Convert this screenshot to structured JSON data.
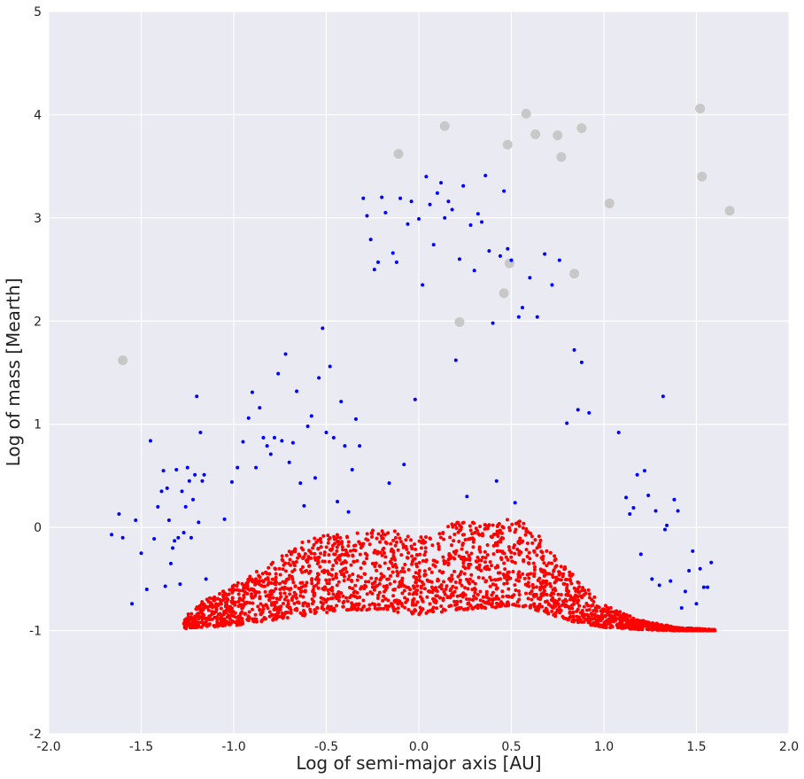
{
  "chart_data": {
    "type": "scatter",
    "title": "",
    "xlabel": "Log of semi-major axis [AU]",
    "ylabel": "Log of mass [Mearth]",
    "xlim": [
      -2.0,
      2.0
    ],
    "ylim": [
      -2,
      5
    ],
    "xticks": [
      "-2.0",
      "-1.5",
      "-1.0",
      "-0.5",
      "0.0",
      "0.5",
      "1.0",
      "1.5",
      "2.0"
    ],
    "yticks": [
      "-2",
      "-1",
      "0",
      "1",
      "2",
      "3",
      "4",
      "5"
    ],
    "grid": true,
    "legend": "none",
    "background_color": "#eaeaf2",
    "series": [
      {
        "color": "#c8c8c8",
        "marker": "large-circle",
        "x": [
          -1.6,
          -0.11,
          0.14,
          0.48,
          0.58,
          0.63,
          0.75,
          0.77,
          0.88,
          0.22,
          0.46,
          0.49,
          0.84,
          1.03,
          1.52,
          1.53,
          1.68
        ],
        "y": [
          1.62,
          3.62,
          3.89,
          3.71,
          4.01,
          3.81,
          3.8,
          3.59,
          3.87,
          1.99,
          2.27,
          2.56,
          2.46,
          3.14,
          4.06,
          3.4,
          3.07
        ]
      },
      {
        "color": "#0000ff",
        "marker": "small-dot",
        "x": [
          -1.66,
          -1.62,
          -1.6,
          -1.55,
          -1.53,
          -1.5,
          -1.47,
          -1.45,
          -1.43,
          -1.41,
          -1.39,
          -1.38,
          -1.37,
          -1.36,
          -1.35,
          -1.34,
          -1.33,
          -1.32,
          -1.31,
          -1.3,
          -1.29,
          -1.28,
          -1.27,
          -1.26,
          -1.25,
          -1.24,
          -1.23,
          -1.22,
          -1.21,
          -1.2,
          -1.19,
          -1.18,
          -1.17,
          -1.16,
          -1.15,
          -1.05,
          -1.01,
          -0.98,
          -0.95,
          -0.92,
          -0.9,
          -0.88,
          -0.86,
          -0.84,
          -0.82,
          -0.8,
          -0.78,
          -0.76,
          -0.74,
          -0.72,
          -0.7,
          -0.68,
          -0.66,
          -0.64,
          -0.62,
          -0.6,
          -0.58,
          -0.56,
          -0.54,
          -0.52,
          -0.5,
          -0.48,
          -0.46,
          -0.44,
          -0.42,
          -0.4,
          -0.38,
          -0.36,
          -0.34,
          -0.32,
          -0.3,
          -0.28,
          -0.26,
          -0.24,
          -0.22,
          -0.2,
          -0.18,
          -0.16,
          -0.14,
          -0.12,
          -0.1,
          -0.08,
          -0.06,
          -0.04,
          -0.02,
          0.0,
          0.02,
          0.04,
          0.06,
          0.08,
          0.1,
          0.12,
          0.14,
          0.16,
          0.18,
          0.2,
          0.22,
          0.24,
          0.26,
          0.28,
          0.3,
          0.32,
          0.34,
          0.36,
          0.38,
          0.4,
          0.42,
          0.44,
          0.46,
          0.48,
          0.5,
          0.52,
          0.54,
          0.56,
          0.6,
          0.64,
          0.68,
          0.72,
          0.76,
          0.8,
          0.84,
          0.86,
          0.88,
          0.92,
          1.08,
          1.12,
          1.14,
          1.16,
          1.18,
          1.2,
          1.22,
          1.24,
          1.26,
          1.28,
          1.3,
          1.32,
          1.33,
          1.34,
          1.36,
          1.38,
          1.4,
          1.42,
          1.44,
          1.46,
          1.48,
          1.5,
          1.52,
          1.54,
          1.56,
          1.58
        ],
        "y": [
          -0.07,
          0.13,
          -0.1,
          -0.74,
          0.07,
          -0.25,
          -0.6,
          0.84,
          -0.11,
          0.2,
          0.35,
          0.55,
          -0.57,
          0.38,
          0.07,
          -0.35,
          -0.2,
          -0.13,
          0.56,
          -0.1,
          -0.55,
          0.35,
          -0.05,
          0.2,
          0.58,
          0.45,
          -0.1,
          0.27,
          0.51,
          1.27,
          0.05,
          0.92,
          0.45,
          0.51,
          -0.5,
          0.08,
          0.44,
          0.58,
          0.83,
          1.06,
          1.31,
          0.58,
          1.16,
          0.87,
          0.79,
          0.71,
          0.87,
          1.49,
          0.84,
          1.68,
          0.63,
          0.82,
          1.32,
          0.43,
          0.21,
          0.98,
          1.08,
          0.48,
          1.45,
          1.93,
          0.92,
          1.56,
          0.87,
          0.25,
          1.22,
          0.79,
          0.15,
          0.56,
          1.05,
          0.79,
          3.19,
          3.02,
          2.79,
          2.5,
          2.57,
          3.2,
          3.05,
          0.43,
          2.66,
          2.57,
          3.19,
          0.61,
          2.94,
          3.16,
          1.24,
          2.99,
          2.35,
          3.4,
          3.13,
          2.74,
          3.24,
          3.34,
          3.0,
          3.16,
          3.08,
          1.62,
          2.6,
          3.31,
          0.3,
          2.93,
          2.49,
          3.04,
          2.96,
          3.41,
          2.68,
          1.98,
          0.45,
          2.63,
          3.26,
          2.7,
          2.59,
          0.24,
          2.04,
          2.13,
          2.42,
          2.04,
          2.65,
          2.35,
          2.59,
          1.01,
          1.72,
          1.14,
          1.6,
          1.11,
          0.92,
          0.29,
          0.13,
          0.19,
          0.51,
          -0.26,
          0.55,
          0.31,
          -0.5,
          0.16,
          -0.56,
          1.27,
          -0.02,
          0.02,
          -0.52,
          0.27,
          0.16,
          -0.78,
          -0.62,
          -0.42,
          -0.23,
          -0.74,
          -0.4,
          -0.58,
          -0.58,
          -0.34
        ]
      },
      {
        "color": "#ff0000",
        "marker": "small-dot",
        "x_range": [
          -1.27,
          1.6
        ],
        "y_range": [
          -1.0,
          0.1
        ],
        "count": 2500,
        "envelope_x": [
          -1.27,
          -1.2,
          -1.0,
          -0.8,
          -0.6,
          -0.4,
          -0.2,
          0.0,
          0.2,
          0.4,
          0.5,
          0.6,
          0.8,
          1.0,
          1.2,
          1.4,
          1.6
        ],
        "envelope_upper": [
          -0.85,
          -0.75,
          -0.55,
          -0.35,
          -0.1,
          -0.05,
          0.0,
          -0.1,
          0.05,
          0.05,
          0.1,
          0.02,
          -0.4,
          -0.75,
          -0.9,
          -0.97,
          -0.99
        ],
        "envelope_lower": [
          -0.98,
          -0.97,
          -0.95,
          -0.9,
          -0.85,
          -0.8,
          -0.8,
          -0.85,
          -0.8,
          -0.78,
          -0.75,
          -0.78,
          -0.9,
          -0.97,
          -0.99,
          -1.0,
          -1.0
        ]
      }
    ]
  }
}
